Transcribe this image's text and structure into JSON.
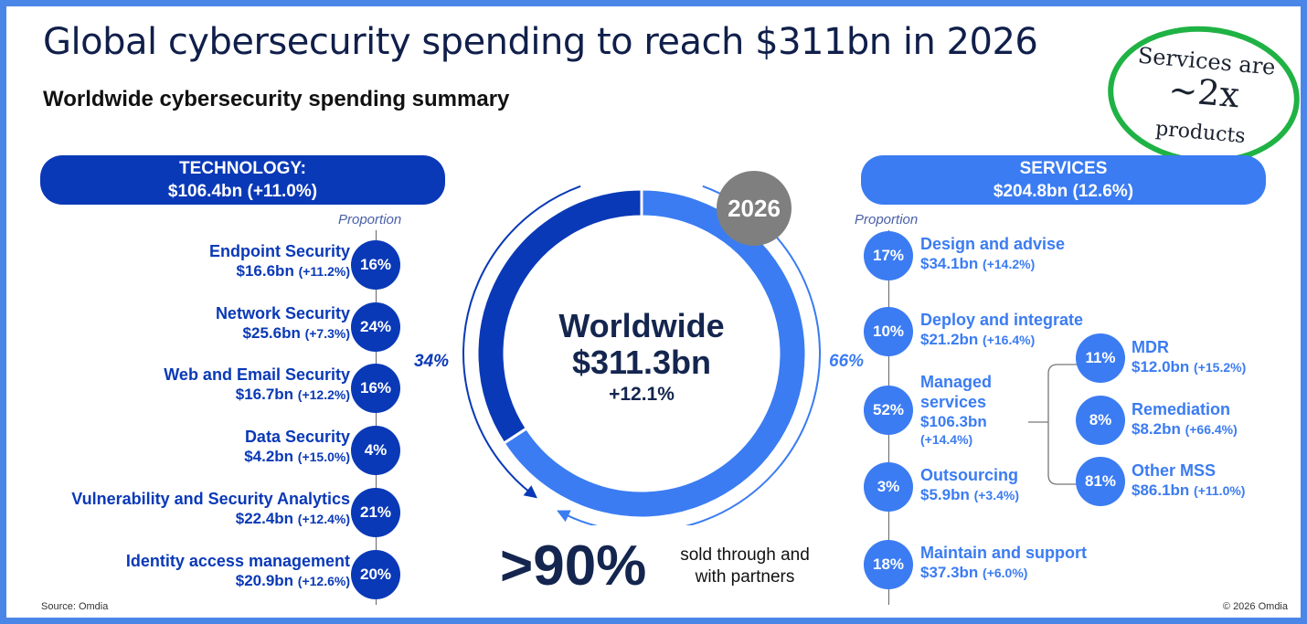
{
  "title": "Global cybersecurity spending to reach $311bn in 2026",
  "subtitle": "Worldwide cybersecurity spending summary",
  "callout": {
    "line1": "Services are",
    "line2": "~2x",
    "line3": "products"
  },
  "colors": {
    "technology": "#0a39b7",
    "services": "#3b7cf2",
    "year_badge": "#7f7f7f",
    "callout_ring": "#1fb244"
  },
  "year": "2026",
  "proportion_label": "Proportion",
  "technology": {
    "header": "TECHNOLOGY:",
    "total": "$106.4bn (+11.0%)",
    "share": "34%",
    "items": [
      {
        "name": "Endpoint Security",
        "value": "$16.6bn",
        "growth": "(+11.2%)",
        "proportion": "16%"
      },
      {
        "name": "Network Security",
        "value": "$25.6bn",
        "growth": "(+7.3%)",
        "proportion": "24%"
      },
      {
        "name": "Web and Email Security",
        "value": "$16.7bn",
        "growth": "(+12.2%)",
        "proportion": "16%"
      },
      {
        "name": "Data Security",
        "value": "$4.2bn",
        "growth": "(+15.0%)",
        "proportion": "4%"
      },
      {
        "name": "Vulnerability and Security Analytics",
        "value": "$22.4bn",
        "growth": "(+12.4%)",
        "proportion": "21%"
      },
      {
        "name": "Identity access management",
        "value": "$20.9bn",
        "growth": "(+12.6%)",
        "proportion": "20%"
      }
    ]
  },
  "services": {
    "header": "SERVICES",
    "total": "$204.8bn (12.6%)",
    "share": "66%",
    "items": [
      {
        "name": "Design and advise",
        "value": "$34.1bn",
        "growth": "(+14.2%)",
        "proportion": "17%"
      },
      {
        "name": "Deploy and integrate",
        "value": "$21.2bn",
        "growth": "(+16.4%)",
        "proportion": "10%"
      },
      {
        "name_line1": "Managed",
        "name_line2": "services",
        "value": "$106.3bn",
        "growth": "(+14.4%)",
        "proportion": "52%"
      },
      {
        "name": "Outsourcing",
        "value": "$5.9bn",
        "growth": "(+3.4%)",
        "proportion": "3%"
      },
      {
        "name": "Maintain and support",
        "value": "$37.3bn",
        "growth": "(+6.0%)",
        "proportion": "18%"
      }
    ],
    "managed_sub": [
      {
        "name": "MDR",
        "value": "$12.0bn",
        "growth": "(+15.2%)",
        "proportion": "11%"
      },
      {
        "name": "Remediation",
        "value": "$8.2bn",
        "growth": "(+66.4%)",
        "proportion": "8%"
      },
      {
        "name": "Other MSS",
        "value": "$86.1bn",
        "growth": "(+11.0%)",
        "proportion": "81%"
      }
    ]
  },
  "worldwide": {
    "label": "Worldwide",
    "value": "$311.3bn",
    "growth": "+12.1%"
  },
  "partners": {
    "big": ">90%",
    "text_line1": "sold through and",
    "text_line2": "with partners"
  },
  "source": "Source: Omdia",
  "copyright": "© 2026 Omdia",
  "chart_data": {
    "type": "pie",
    "categories": [
      "Technology",
      "Services"
    ],
    "values": [
      106.4,
      204.8
    ],
    "shares_pct": [
      34,
      66
    ],
    "total": 311.3
  }
}
